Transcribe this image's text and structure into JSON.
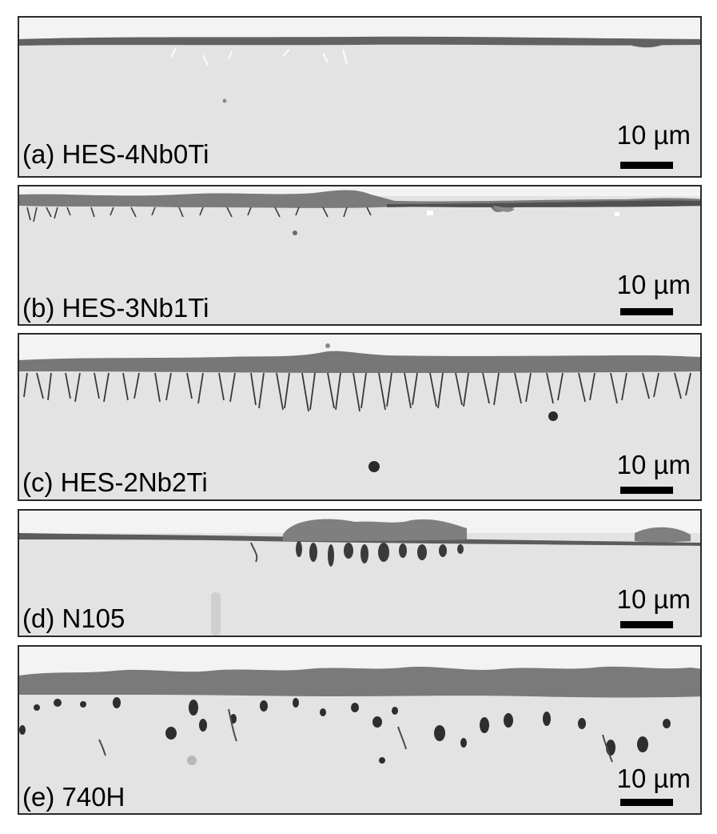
{
  "figure": {
    "panels": [
      {
        "id": "a",
        "label": "(a) HES-4Nb0Ti",
        "scale": "10 µm"
      },
      {
        "id": "b",
        "label": "(b) HES-3Nb1Ti",
        "scale": "10 µm"
      },
      {
        "id": "c",
        "label": "(c) HES-2Nb2Ti",
        "scale": "10 µm"
      },
      {
        "id": "d",
        "label": "(d) N105",
        "scale": "10 µm"
      },
      {
        "id": "e",
        "label": "(e) 740H",
        "scale": "10 µm"
      }
    ]
  },
  "colors": {
    "substrate": "#e3e3e3",
    "mount": "#f4f4f4",
    "oxide_scale": "#6f6f6f",
    "internal_oxide": "#3a3a3a",
    "frame": "#2a2a2a"
  }
}
